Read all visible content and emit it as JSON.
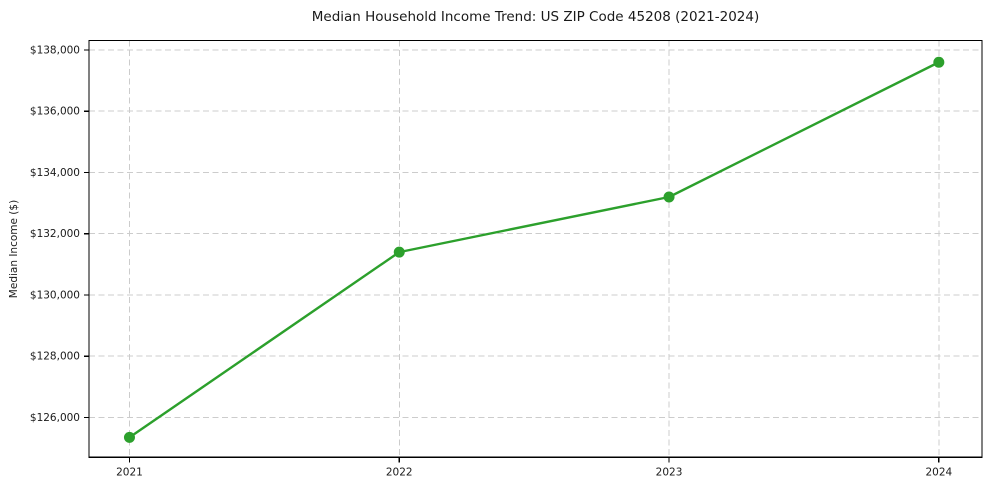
{
  "chart_data": {
    "type": "line",
    "title": "Median Household Income Trend: US ZIP Code 45208 (2021-2024)",
    "xlabel": "",
    "ylabel": "Median Income ($)",
    "x": [
      2021,
      2022,
      2023,
      2024
    ],
    "series": [
      {
        "name": "Median Income",
        "values": [
          125350,
          131400,
          133200,
          137600
        ],
        "point_labels": [
          "2021",
          "2022",
          "2023",
          "2024"
        ]
      }
    ],
    "xlim": [
      2020.85,
      2024.16
    ],
    "ylim": [
      124700,
      138310
    ],
    "xticks": [
      {
        "value": 2021,
        "label": "2021"
      },
      {
        "value": 2022,
        "label": "2022"
      },
      {
        "value": 2023,
        "label": "2023"
      },
      {
        "value": 2024,
        "label": "2024"
      }
    ],
    "yticks": [
      {
        "value": 126000,
        "label": "$126,000"
      },
      {
        "value": 128000,
        "label": "$128,000"
      },
      {
        "value": 130000,
        "label": "$130,000"
      },
      {
        "value": 132000,
        "label": "$132,000"
      },
      {
        "value": 134000,
        "label": "$134,000"
      },
      {
        "value": 136000,
        "label": "$136,000"
      },
      {
        "value": 138000,
        "label": "$138,000"
      }
    ],
    "grid": true,
    "grid_style": "dashed",
    "legend": "none",
    "colors": {
      "line": "#2ca02c",
      "marker": "#2ca02c",
      "grid": "#cccccc",
      "frame": "#000000",
      "tick_label": "#1a1a1a",
      "background": "#ffffff"
    }
  }
}
